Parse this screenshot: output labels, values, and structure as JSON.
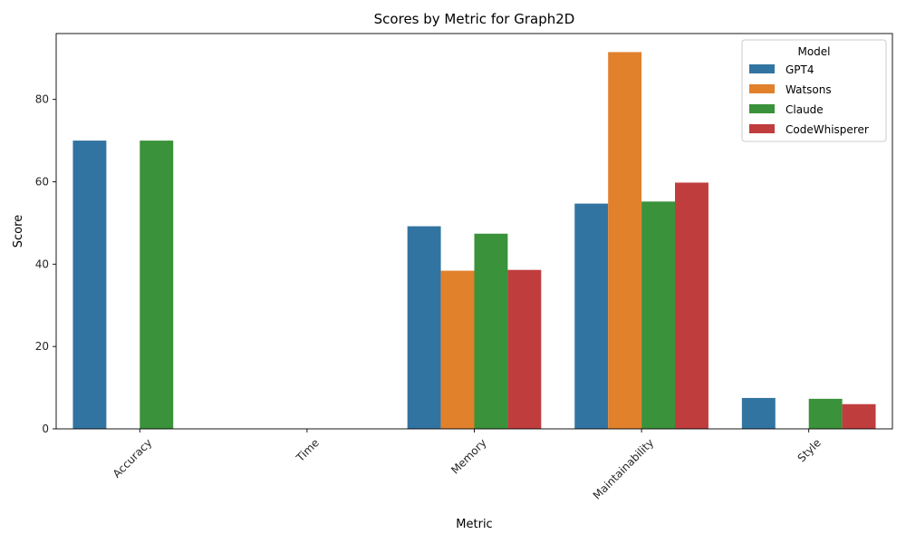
{
  "chart_data": {
    "type": "bar",
    "title": "Scores by Metric for Graph2D",
    "xlabel": "Metric",
    "ylabel": "Score",
    "ylim": [
      0,
      96
    ],
    "yticks": [
      0,
      20,
      40,
      60,
      80
    ],
    "categories": [
      "Accuracy",
      "Time",
      "Memory",
      "Maintainability",
      "Style"
    ],
    "legend": {
      "title": "Model",
      "placement": "top-right"
    },
    "grid": false,
    "series": [
      {
        "name": "GPT4",
        "color": "#3274a1",
        "values": [
          70.0,
          null,
          49.2,
          54.7,
          7.5
        ]
      },
      {
        "name": "Watsons",
        "color": "#e1812c",
        "values": [
          null,
          null,
          38.4,
          91.5,
          null
        ]
      },
      {
        "name": "Claude",
        "color": "#3a923a",
        "values": [
          70.0,
          null,
          47.4,
          55.2,
          7.3
        ]
      },
      {
        "name": "CodeWhisperer",
        "color": "#c03d3e",
        "values": [
          null,
          null,
          38.6,
          59.8,
          6.0
        ]
      }
    ]
  }
}
